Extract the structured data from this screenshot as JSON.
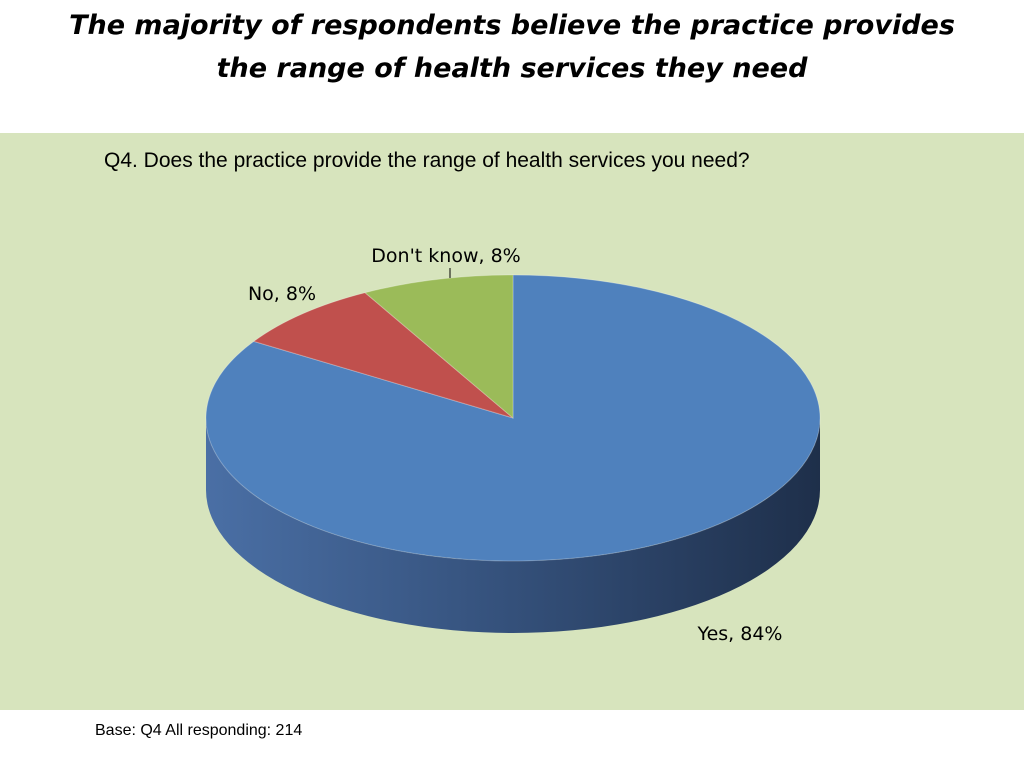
{
  "slide": {
    "title_line1": "The majority of respondents believe the practice provides",
    "title_line2": "the range of health services they need",
    "base_note": "Base: Q4 All responding: 214"
  },
  "colors": {
    "panel_bg": "#d7e4bd",
    "yes": "#4f81bd",
    "no": "#c0504d",
    "dont_know": "#9bbb59"
  },
  "chart_data": {
    "type": "pie",
    "style": "3d",
    "title": "Q4. Does the practice provide the range of health services you need?",
    "slices": [
      {
        "label": "Yes",
        "value": 84,
        "display": "Yes, 84%",
        "color": "#4f81bd"
      },
      {
        "label": "No",
        "value": 8,
        "display": "No, 8%",
        "color": "#c0504d"
      },
      {
        "label": "Don't know",
        "value": 8,
        "display": "Don't know, 8%",
        "color": "#9bbb59"
      }
    ]
  }
}
